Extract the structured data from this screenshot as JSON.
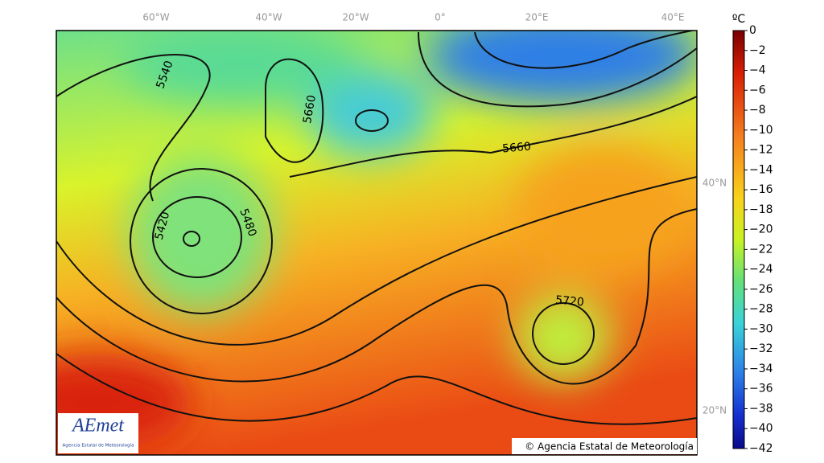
{
  "map": {
    "longitude_labels": [
      "60°W",
      "40°W",
      "20°W",
      "0°",
      "20°E",
      "40°E"
    ],
    "latitude_labels": [
      "40°N",
      "20°N"
    ],
    "contour_labels": [
      "5540",
      "5660",
      "5420",
      "5480",
      "5660",
      "5720"
    ],
    "logo": {
      "name": "AEmet",
      "caption": "Agencia Estatal de Meteorología"
    },
    "copyright": "© Agencia Estatal de Meteorología"
  },
  "colorbar": {
    "unit": "ºC",
    "ticks": [
      "0",
      "−2",
      "−4",
      "−6",
      "−8",
      "−10",
      "−12",
      "−14",
      "−16",
      "−18",
      "−20",
      "−22",
      "−24",
      "−26",
      "−28",
      "−30",
      "−32",
      "−34",
      "−36",
      "−38",
      "−40",
      "−42"
    ]
  }
}
